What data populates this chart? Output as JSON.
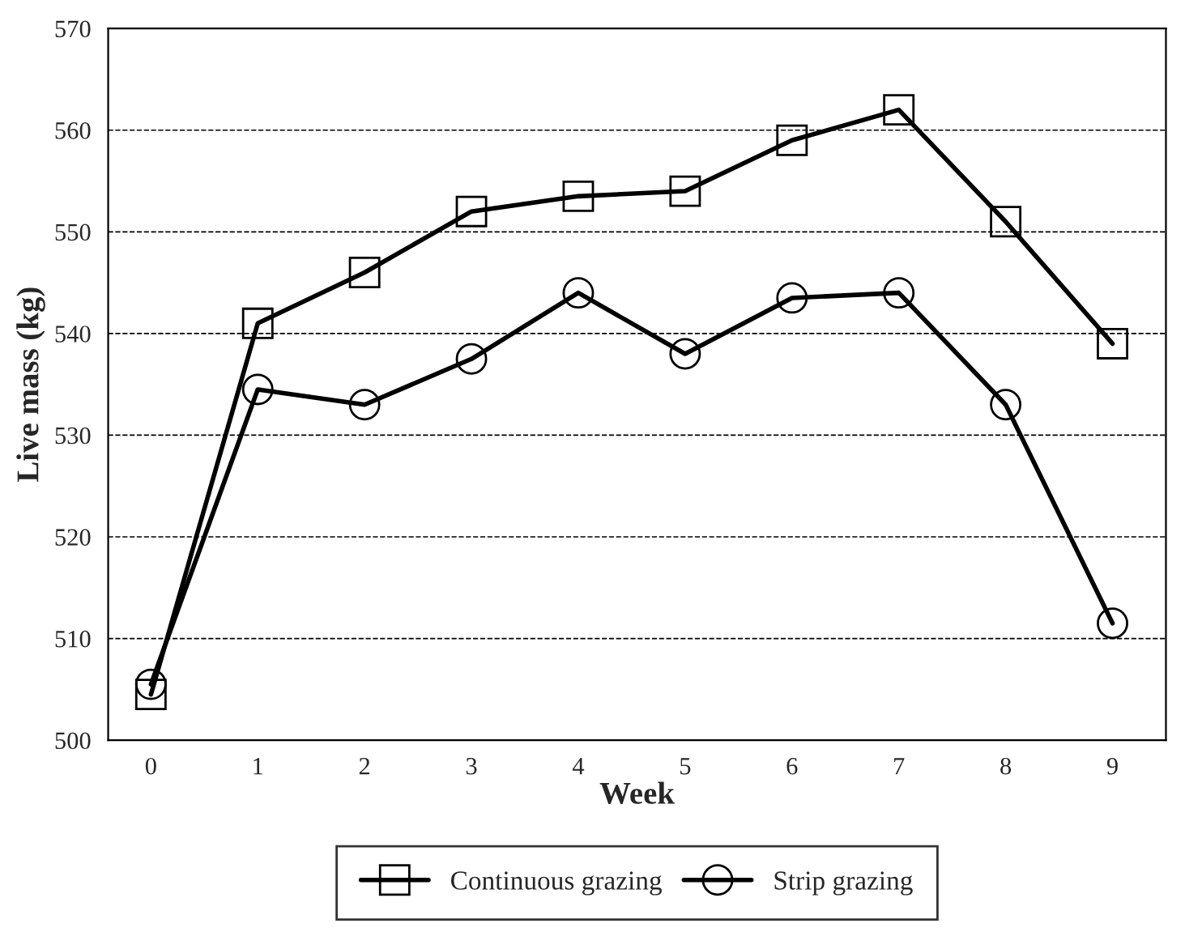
{
  "chart_data": {
    "type": "line",
    "xlabel": "Week",
    "ylabel": "Live mass (kg)",
    "x": [
      0,
      1,
      2,
      3,
      4,
      5,
      6,
      7,
      8,
      9
    ],
    "series": [
      {
        "name": "Continuous grazing",
        "color": "#000000",
        "marker": "square",
        "values": [
          504.5,
          541,
          546,
          552,
          553.5,
          554,
          559,
          562,
          551,
          539
        ]
      },
      {
        "name": "Strip grazing",
        "color": "#000000",
        "marker": "circle",
        "values": [
          505.5,
          534.5,
          533,
          537.5,
          544,
          538,
          543.5,
          544,
          533,
          511.5
        ]
      }
    ],
    "xlim": [
      -0.4,
      9.5
    ],
    "xticks": [
      0,
      1,
      2,
      3,
      4,
      5,
      6,
      7,
      8,
      9
    ],
    "ylim": [
      500,
      570
    ],
    "yticks": [
      500,
      510,
      520,
      530,
      540,
      550,
      560,
      570
    ],
    "grid": "y",
    "legend": "bottom",
    "line_style": "solid"
  }
}
